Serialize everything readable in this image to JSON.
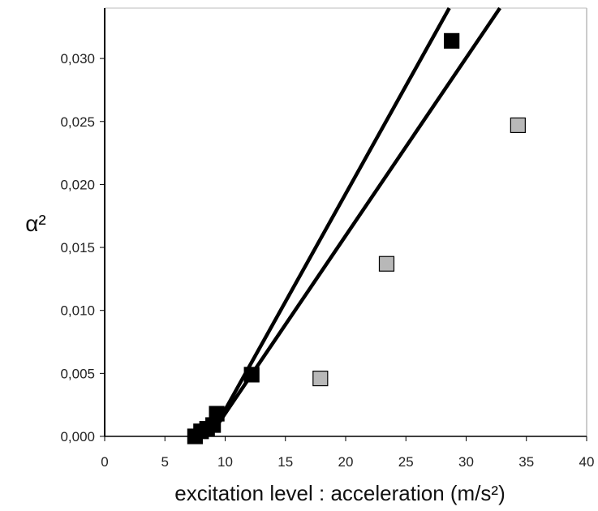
{
  "chart_data": {
    "type": "scatter",
    "xlabel": "excitation level : acceleration (m/s²)",
    "ylabel": "α²",
    "xlim": [
      0,
      40
    ],
    "ylim": [
      0,
      0.034
    ],
    "x_ticks": [
      0,
      5,
      10,
      15,
      20,
      25,
      30,
      35,
      40
    ],
    "x_tick_labels": [
      "0",
      "5",
      "10",
      "15",
      "20",
      "25",
      "30",
      "35",
      "40"
    ],
    "y_ticks": [
      0,
      0.005,
      0.01,
      0.015,
      0.02,
      0.025,
      0.03
    ],
    "y_tick_labels": [
      "0,000",
      "0,005",
      "0,010",
      "0,015",
      "0,020",
      "0,025",
      "0,030"
    ],
    "grid": false,
    "legend": "none",
    "series": [
      {
        "marker": "square",
        "color": "#000000",
        "points": [
          {
            "x": 7.5,
            "y": 0.0
          },
          {
            "x": 8.0,
            "y": 0.0004
          },
          {
            "x": 8.5,
            "y": 0.0006
          },
          {
            "x": 9.0,
            "y": 0.0009
          },
          {
            "x": 9.3,
            "y": 0.0018
          },
          {
            "x": 12.2,
            "y": 0.0049
          },
          {
            "x": 28.8,
            "y": 0.0314
          }
        ]
      },
      {
        "marker": "square",
        "color": "#b8b8b8",
        "points": [
          {
            "x": 17.9,
            "y": 0.0046
          },
          {
            "x": 23.4,
            "y": 0.0137
          },
          {
            "x": 34.3,
            "y": 0.0247
          }
        ]
      }
    ],
    "lines": [
      {
        "x": [
          9.0,
          28.6
        ],
        "y": [
          0.0004,
          0.034
        ]
      },
      {
        "x": [
          9.0,
          32.8
        ],
        "y": [
          0.0004,
          0.034
        ]
      }
    ]
  }
}
